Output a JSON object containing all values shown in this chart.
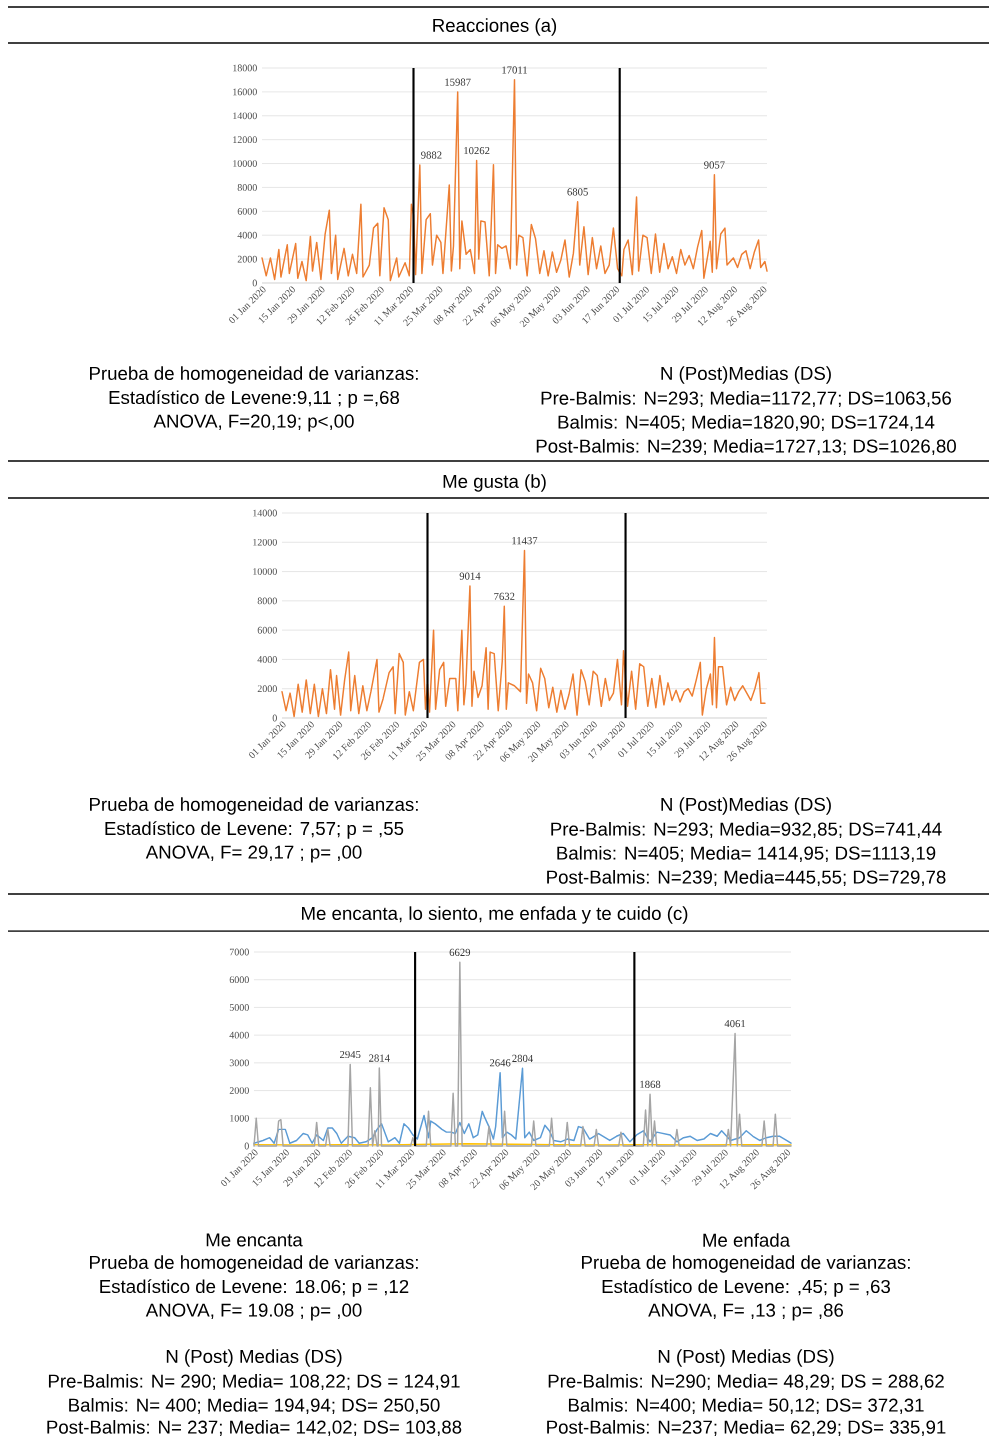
{
  "chart_data": [
    {
      "type": "line",
      "title": "Reacciones (a)",
      "grid": "y",
      "line_style": "solid",
      "xlim": [
        "2020-01-01",
        "2020-08-28"
      ],
      "ylim": [
        0,
        18000
      ],
      "yticks": [
        0,
        2000,
        4000,
        6000,
        8000,
        10000,
        12000,
        14000,
        16000,
        18000
      ],
      "xticks": [
        {
          "value": "2020-01-01",
          "label": "01 Jan 2020"
        },
        {
          "value": "2020-01-15",
          "label": "15 Jan 2020"
        },
        {
          "value": "2020-01-29",
          "label": "29 Jan 2020"
        },
        {
          "value": "2020-02-12",
          "label": "12 Feb 2020"
        },
        {
          "value": "2020-02-26",
          "label": "26 Feb 2020"
        },
        {
          "value": "2020-03-11",
          "label": "11 Mar 2020"
        },
        {
          "value": "2020-03-25",
          "label": "25 Mar 2020"
        },
        {
          "value": "2020-04-08",
          "label": "08 Apr 2020"
        },
        {
          "value": "2020-04-22",
          "label": "22 Apr 2020"
        },
        {
          "value": "2020-05-06",
          "label": "06 May 2020"
        },
        {
          "value": "2020-05-20",
          "label": "20 May 2020"
        },
        {
          "value": "2020-06-03",
          "label": "03 Jun 2020"
        },
        {
          "value": "2020-06-17",
          "label": "17 Jun 2020"
        },
        {
          "value": "2020-07-01",
          "label": "01 Jul 2020"
        },
        {
          "value": "2020-07-15",
          "label": "15 Jul 2020"
        },
        {
          "value": "2020-07-29",
          "label": "29 Jul 2020"
        },
        {
          "value": "2020-08-12",
          "label": "12 Aug 2020"
        },
        {
          "value": "2020-08-26",
          "label": "26 Aug 2020"
        }
      ],
      "ref_lines": [
        {
          "axis": "x",
          "value": "2020-03-13",
          "color": "#000000"
        },
        {
          "axis": "x",
          "value": "2020-06-19",
          "color": "#000000"
        }
      ],
      "series": [
        {
          "color": "#ed7d31",
          "x": [
            "2020-01-01",
            "2020-01-03",
            "2020-01-05",
            "2020-01-07",
            "2020-01-09",
            "2020-01-10",
            "2020-01-13",
            "2020-01-14",
            "2020-01-17",
            "2020-01-18",
            "2020-01-20",
            "2020-01-22",
            "2020-01-24",
            "2020-01-25",
            "2020-01-27",
            "2020-01-29",
            "2020-01-31",
            "2020-02-02",
            "2020-02-03",
            "2020-02-05",
            "2020-02-06",
            "2020-02-09",
            "2020-02-11",
            "2020-02-13",
            "2020-02-15",
            "2020-02-17",
            "2020-02-18",
            "2020-02-21",
            "2020-02-23",
            "2020-02-25",
            "2020-02-26",
            "2020-02-28",
            "2020-03-01",
            "2020-03-02",
            "2020-03-05",
            "2020-03-06",
            "2020-03-09",
            "2020-03-11",
            "2020-03-12",
            "2020-03-13",
            "2020-03-14",
            "2020-03-16",
            "2020-03-17",
            "2020-03-19",
            "2020-03-21",
            "2020-03-22",
            "2020-03-24",
            "2020-03-26",
            "2020-03-27",
            "2020-03-30",
            "2020-03-31",
            "2020-04-01",
            "2020-04-03",
            "2020-04-04",
            "2020-04-05",
            "2020-04-07",
            "2020-04-09",
            "2020-04-11",
            "2020-04-12",
            "2020-04-13",
            "2020-04-14",
            "2020-04-16",
            "2020-04-18",
            "2020-04-19",
            "2020-04-20",
            "2020-04-21",
            "2020-04-22",
            "2020-04-24",
            "2020-04-26",
            "2020-04-28",
            "2020-04-30",
            "2020-05-01",
            "2020-05-02",
            "2020-05-04",
            "2020-05-06",
            "2020-05-08",
            "2020-05-10",
            "2020-05-12",
            "2020-05-14",
            "2020-05-16",
            "2020-05-18",
            "2020-05-20",
            "2020-05-22",
            "2020-05-24",
            "2020-05-26",
            "2020-05-28",
            "2020-05-30",
            "2020-05-31",
            "2020-06-02",
            "2020-06-04",
            "2020-06-06",
            "2020-06-08",
            "2020-06-10",
            "2020-06-12",
            "2020-06-14",
            "2020-06-16",
            "2020-06-18",
            "2020-06-20",
            "2020-06-21",
            "2020-06-23",
            "2020-06-25",
            "2020-06-27",
            "2020-06-28",
            "2020-06-30",
            "2020-07-02",
            "2020-07-04",
            "2020-07-06",
            "2020-07-08",
            "2020-07-10",
            "2020-07-12",
            "2020-07-14",
            "2020-07-16",
            "2020-07-18",
            "2020-07-20",
            "2020-07-22",
            "2020-07-24",
            "2020-07-26",
            "2020-07-28",
            "2020-07-29",
            "2020-08-01",
            "2020-08-02",
            "2020-08-03",
            "2020-08-04",
            "2020-08-06",
            "2020-08-08",
            "2020-08-09",
            "2020-08-12",
            "2020-08-14",
            "2020-08-16",
            "2020-08-18",
            "2020-08-20",
            "2020-08-22",
            "2020-08-24",
            "2020-08-25",
            "2020-08-27",
            "2020-08-28"
          ],
          "values": [
            2100,
            600,
            2100,
            300,
            2800,
            500,
            3200,
            800,
            3300,
            400,
            1800,
            200,
            3900,
            1000,
            3400,
            300,
            4100,
            6100,
            800,
            4000,
            300,
            2900,
            600,
            2400,
            800,
            6600,
            500,
            1500,
            4600,
            5000,
            600,
            6300,
            5300,
            200,
            2100,
            500,
            1700,
            600,
            6600,
            5700,
            700,
            9882,
            800,
            5300,
            5800,
            1500,
            4000,
            3400,
            800,
            8200,
            1000,
            3100,
            15987,
            1200,
            5200,
            2400,
            2800,
            800,
            10262,
            2000,
            5200,
            5100,
            600,
            5200,
            9900,
            800,
            3200,
            2900,
            3100,
            1200,
            17011,
            1500,
            4000,
            3800,
            600,
            4900,
            3700,
            800,
            2700,
            600,
            2600,
            900,
            1900,
            3600,
            500,
            2500,
            6805,
            1500,
            4700,
            700,
            3800,
            1200,
            3100,
            800,
            1500,
            4600,
            1200,
            600,
            2800,
            3600,
            700,
            7200,
            1000,
            4000,
            3800,
            800,
            4100,
            900,
            3300,
            1200,
            2200,
            800,
            2800,
            1500,
            2300,
            1200,
            3000,
            4400,
            400,
            3500,
            900,
            9057,
            1200,
            4100,
            4600,
            1500,
            2100,
            1300,
            2400,
            2700,
            1200,
            2600,
            3600,
            1300,
            1800,
            1000
          ]
        }
      ],
      "annotations": [
        {
          "text": "9882",
          "x": "2020-03-16",
          "y": 9882
        },
        {
          "text": "15987",
          "x": "2020-04-03",
          "y": 15987
        },
        {
          "text": "10262",
          "x": "2020-04-12",
          "y": 10262
        },
        {
          "text": "17011",
          "x": "2020-04-30",
          "y": 17011
        },
        {
          "text": "6805",
          "x": "2020-05-30",
          "y": 6805
        },
        {
          "text": "9057",
          "x": "2020-08-03",
          "y": 9057
        },
        "Prueba de homogeneidad de varianzas:",
        "Estadístico de Levene:9,11 ; p =,68",
        "ANOVA, F=20,19; p<,00",
        "N (Post)Medias (DS)",
        "Pre-Balmis: N=293; Media=1172,77; DS=1063,56",
        "Balmis: N=405; Media=1820,90; DS=1724,14",
        "Post-Balmis: N=239; Media=1727,13; DS=1026,80"
      ]
    },
    {
      "type": "line",
      "title": "Me gusta (b)",
      "grid": "y",
      "line_style": "solid",
      "xlim": [
        "2020-01-01",
        "2020-08-28"
      ],
      "ylim": [
        0,
        14000
      ],
      "yticks": [
        0,
        2000,
        4000,
        6000,
        8000,
        10000,
        12000,
        14000
      ],
      "xticks": [
        {
          "value": "2020-01-01",
          "label": "01 Jan 2020"
        },
        {
          "value": "2020-01-15",
          "label": "15 Jan 2020"
        },
        {
          "value": "2020-01-29",
          "label": "29 Jan 2020"
        },
        {
          "value": "2020-02-12",
          "label": "12 Feb 2020"
        },
        {
          "value": "2020-02-26",
          "label": "26 Feb 2020"
        },
        {
          "value": "2020-03-11",
          "label": "11 Mar 2020"
        },
        {
          "value": "2020-03-25",
          "label": "25 Mar 2020"
        },
        {
          "value": "2020-04-08",
          "label": "08 Apr 2020"
        },
        {
          "value": "2020-04-22",
          "label": "22 Apr 2020"
        },
        {
          "value": "2020-05-06",
          "label": "06 May 2020"
        },
        {
          "value": "2020-05-20",
          "label": "20 May 2020"
        },
        {
          "value": "2020-06-03",
          "label": "03 Jun 2020"
        },
        {
          "value": "2020-06-17",
          "label": "17 Jun 2020"
        },
        {
          "value": "2020-07-01",
          "label": "01 Jul 2020"
        },
        {
          "value": "2020-07-15",
          "label": "15 Jul 2020"
        },
        {
          "value": "2020-07-29",
          "label": "29 Jul 2020"
        },
        {
          "value": "2020-08-12",
          "label": "12 Aug 2020"
        },
        {
          "value": "2020-08-26",
          "label": "26 Aug 2020"
        }
      ],
      "ref_lines": [
        {
          "axis": "x",
          "value": "2020-03-13",
          "color": "#000000"
        },
        {
          "axis": "x",
          "value": "2020-06-19",
          "color": "#000000"
        }
      ],
      "series": [
        {
          "color": "#ed7d31",
          "x": [
            "2020-01-01",
            "2020-01-03",
            "2020-01-05",
            "2020-01-07",
            "2020-01-09",
            "2020-01-11",
            "2020-01-13",
            "2020-01-15",
            "2020-01-17",
            "2020-01-19",
            "2020-01-21",
            "2020-01-23",
            "2020-01-25",
            "2020-01-27",
            "2020-01-28",
            "2020-01-30",
            "2020-02-01",
            "2020-02-03",
            "2020-02-04",
            "2020-02-06",
            "2020-02-08",
            "2020-02-10",
            "2020-02-12",
            "2020-02-14",
            "2020-02-17",
            "2020-02-18",
            "2020-02-20",
            "2020-02-23",
            "2020-02-25",
            "2020-02-26",
            "2020-02-28",
            "2020-03-01",
            "2020-03-02",
            "2020-03-04",
            "2020-03-06",
            "2020-03-09",
            "2020-03-11",
            "2020-03-12",
            "2020-03-13",
            "2020-03-14",
            "2020-03-16",
            "2020-03-17",
            "2020-03-19",
            "2020-03-21",
            "2020-03-22",
            "2020-03-24",
            "2020-03-27",
            "2020-03-28",
            "2020-03-30",
            "2020-03-31",
            "2020-04-01",
            "2020-04-03",
            "2020-04-04",
            "2020-04-05",
            "2020-04-07",
            "2020-04-09",
            "2020-04-11",
            "2020-04-12",
            "2020-04-13",
            "2020-04-15",
            "2020-04-17",
            "2020-04-19",
            "2020-04-20",
            "2020-04-21",
            "2020-04-22",
            "2020-04-25",
            "2020-04-28",
            "2020-04-30",
            "2020-05-01",
            "2020-05-02",
            "2020-05-04",
            "2020-05-06",
            "2020-05-08",
            "2020-05-10",
            "2020-05-12",
            "2020-05-14",
            "2020-05-16",
            "2020-05-18",
            "2020-05-20",
            "2020-05-22",
            "2020-05-24",
            "2020-05-26",
            "2020-05-28",
            "2020-05-30",
            "2020-06-01",
            "2020-06-03",
            "2020-06-05",
            "2020-06-07",
            "2020-06-09",
            "2020-06-11",
            "2020-06-13",
            "2020-06-15",
            "2020-06-17",
            "2020-06-18",
            "2020-06-20",
            "2020-06-22",
            "2020-06-24",
            "2020-06-26",
            "2020-06-28",
            "2020-06-30",
            "2020-07-02",
            "2020-07-04",
            "2020-07-06",
            "2020-07-08",
            "2020-07-10",
            "2020-07-12",
            "2020-07-14",
            "2020-07-16",
            "2020-07-18",
            "2020-07-20",
            "2020-07-22",
            "2020-07-24",
            "2020-07-26",
            "2020-07-27",
            "2020-07-29",
            "2020-07-31",
            "2020-08-01",
            "2020-08-02",
            "2020-08-03",
            "2020-08-04",
            "2020-08-06",
            "2020-08-08",
            "2020-08-10",
            "2020-08-12",
            "2020-08-14",
            "2020-08-16",
            "2020-08-18",
            "2020-08-20",
            "2020-08-22",
            "2020-08-24",
            "2020-08-25",
            "2020-08-27"
          ],
          "values": [
            1800,
            500,
            1700,
            100,
            2300,
            400,
            2600,
            300,
            2300,
            100,
            2000,
            300,
            3300,
            600,
            2900,
            200,
            2600,
            4500,
            500,
            2900,
            300,
            2200,
            500,
            1800,
            4000,
            400,
            1300,
            3100,
            3500,
            300,
            4400,
            3800,
            200,
            1800,
            500,
            3800,
            4000,
            600,
            2300,
            400,
            6000,
            600,
            3300,
            3800,
            800,
            2700,
            2700,
            500,
            6000,
            900,
            2300,
            9014,
            800,
            3200,
            1400,
            2200,
            4800,
            600,
            4500,
            4400,
            500,
            3900,
            7632,
            600,
            2400,
            2200,
            1800,
            11437,
            1000,
            3000,
            2400,
            500,
            3400,
            2700,
            700,
            2100,
            400,
            1900,
            600,
            1600,
            3000,
            200,
            3300,
            2500,
            900,
            3200,
            2900,
            800,
            2700,
            1200,
            1700,
            4000,
            900,
            4600,
            800,
            3200,
            600,
            3700,
            3500,
            800,
            2700,
            700,
            2900,
            900,
            2400,
            1200,
            1900,
            1100,
            1800,
            2000,
            1500,
            2600,
            3800,
            200,
            2000,
            3000,
            900,
            5500,
            700,
            3500,
            3500,
            900,
            2100,
            1200,
            1800,
            2200,
            1700,
            1200,
            2000,
            3100,
            1000,
            1000
          ]
        }
      ],
      "annotations": [
        {
          "text": "9014",
          "x": "2020-04-03",
          "y": 9014
        },
        {
          "text": "7632",
          "x": "2020-04-20",
          "y": 7632
        },
        {
          "text": "11437",
          "x": "2020-04-30",
          "y": 11437
        },
        "Prueba de homogeneidad de varianzas:",
        "Estadístico de Levene: 7,57; p = ,55",
        "ANOVA, F= 29,17 ; p= ,00",
        "N (Post)Medias (DS)",
        "Pre-Balmis: N=293; Media=932,85; DS=741,44",
        "Balmis: N=405; Media= 1414,95; DS=1113,19",
        "Post-Balmis: N=239; Media=445,55; DS=729,78"
      ]
    },
    {
      "type": "line",
      "title": "Me encanta, lo siento, me enfada y te cuido (c)",
      "grid": "y",
      "line_style": "solid",
      "xlim": [
        "2020-01-01",
        "2020-08-28"
      ],
      "ylim": [
        0,
        7000
      ],
      "yticks": [
        0,
        1000,
        2000,
        3000,
        4000,
        5000,
        6000,
        7000
      ],
      "xticks": [
        {
          "value": "2020-01-01",
          "label": "01 Jan 2020"
        },
        {
          "value": "2020-01-15",
          "label": "15 Jan 2020"
        },
        {
          "value": "2020-01-29",
          "label": "29 Jan 2020"
        },
        {
          "value": "2020-02-12",
          "label": "12 Feb 2020"
        },
        {
          "value": "2020-02-26",
          "label": "26 Feb 2020"
        },
        {
          "value": "2020-03-11",
          "label": "11 Mar 2020"
        },
        {
          "value": "2020-03-25",
          "label": "25 Mar 2020"
        },
        {
          "value": "2020-04-08",
          "label": "08 Apr 2020"
        },
        {
          "value": "2020-04-22",
          "label": "22 Apr 2020"
        },
        {
          "value": "2020-05-06",
          "label": "06 May 2020"
        },
        {
          "value": "2020-05-20",
          "label": "20 May 2020"
        },
        {
          "value": "2020-06-03",
          "label": "03 Jun 2020"
        },
        {
          "value": "2020-06-17",
          "label": "17 Jun 2020"
        },
        {
          "value": "2020-07-01",
          "label": "01 Jul 2020"
        },
        {
          "value": "2020-07-15",
          "label": "15 Jul 2020"
        },
        {
          "value": "2020-07-29",
          "label": "29 Jul 2020"
        },
        {
          "value": "2020-08-12",
          "label": "12 Aug 2020"
        },
        {
          "value": "2020-08-26",
          "label": "26 Aug 2020"
        }
      ],
      "ref_lines": [
        {
          "axis": "x",
          "value": "2020-03-13",
          "color": "#000000"
        },
        {
          "axis": "x",
          "value": "2020-06-19",
          "color": "#000000"
        }
      ],
      "series": [
        {
          "color": "#ffc000",
          "x": [
            "2020-01-01",
            "2020-01-20",
            "2020-02-10",
            "2020-03-01",
            "2020-03-20",
            "2020-04-05",
            "2020-04-25",
            "2020-05-15",
            "2020-06-05",
            "2020-06-25",
            "2020-07-15",
            "2020-08-05",
            "2020-08-28"
          ],
          "values": [
            50,
            40,
            50,
            40,
            60,
            80,
            60,
            50,
            40,
            50,
            40,
            50,
            40
          ]
        },
        {
          "color": "#5b9bd5",
          "x": [
            "2020-01-01",
            "2020-01-05",
            "2020-01-08",
            "2020-01-10",
            "2020-01-12",
            "2020-01-15",
            "2020-01-17",
            "2020-01-20",
            "2020-01-23",
            "2020-01-25",
            "2020-01-27",
            "2020-01-29",
            "2020-02-01",
            "2020-02-03",
            "2020-02-05",
            "2020-02-07",
            "2020-02-09",
            "2020-02-12",
            "2020-02-15",
            "2020-02-17",
            "2020-02-20",
            "2020-02-23",
            "2020-02-25",
            "2020-02-27",
            "2020-03-01",
            "2020-03-04",
            "2020-03-06",
            "2020-03-08",
            "2020-03-10",
            "2020-03-12",
            "2020-03-14",
            "2020-03-17",
            "2020-03-19",
            "2020-03-20",
            "2020-03-22",
            "2020-03-25",
            "2020-03-27",
            "2020-03-29",
            "2020-03-31",
            "2020-04-02",
            "2020-04-04",
            "2020-04-06",
            "2020-04-08",
            "2020-04-10",
            "2020-04-12",
            "2020-04-13",
            "2020-04-15",
            "2020-04-17",
            "2020-04-18",
            "2020-04-20",
            "2020-04-21",
            "2020-04-23",
            "2020-04-25",
            "2020-04-27",
            "2020-04-30",
            "2020-05-01",
            "2020-05-03",
            "2020-05-05",
            "2020-05-08",
            "2020-05-10",
            "2020-05-12",
            "2020-05-14",
            "2020-05-17",
            "2020-05-20",
            "2020-05-23",
            "2020-05-25",
            "2020-05-27",
            "2020-05-30",
            "2020-06-03",
            "2020-06-05",
            "2020-06-08",
            "2020-06-11",
            "2020-06-14",
            "2020-06-17",
            "2020-06-20",
            "2020-06-23",
            "2020-06-26",
            "2020-06-29",
            "2020-07-02",
            "2020-07-05",
            "2020-07-08",
            "2020-07-11",
            "2020-07-14",
            "2020-07-17",
            "2020-07-20",
            "2020-07-23",
            "2020-07-26",
            "2020-07-28",
            "2020-08-01",
            "2020-08-05",
            "2020-08-08",
            "2020-08-11",
            "2020-08-14",
            "2020-08-17",
            "2020-08-20",
            "2020-08-23",
            "2020-08-26",
            "2020-08-28"
          ],
          "values": [
            100,
            200,
            300,
            100,
            600,
            600,
            100,
            200,
            450,
            400,
            100,
            400,
            200,
            650,
            650,
            450,
            100,
            350,
            300,
            100,
            150,
            300,
            600,
            800,
            150,
            300,
            100,
            800,
            650,
            400,
            250,
            1100,
            300,
            900,
            800,
            600,
            500,
            500,
            450,
            850,
            450,
            800,
            300,
            400,
            1250,
            1050,
            700,
            250,
            700,
            2646,
            300,
            500,
            400,
            250,
            2804,
            300,
            500,
            200,
            300,
            750,
            550,
            200,
            150,
            250,
            200,
            700,
            650,
            250,
            450,
            350,
            200,
            350,
            450,
            150,
            400,
            550,
            150,
            500,
            450,
            400,
            150,
            300,
            350,
            200,
            250,
            450,
            350,
            550,
            200,
            300,
            550,
            350,
            200,
            300,
            350,
            350,
            200,
            100
          ]
        },
        {
          "color": "#a5a5a5",
          "x": [
            "2020-01-01",
            "2020-01-02",
            "2020-01-03",
            "2020-01-11",
            "2020-01-12",
            "2020-01-13",
            "2020-01-14",
            "2020-01-28",
            "2020-01-29",
            "2020-01-30",
            "2020-02-02",
            "2020-02-03",
            "2020-02-04",
            "2020-02-12",
            "2020-02-13",
            "2020-02-14",
            "2020-02-21",
            "2020-02-22",
            "2020-02-23",
            "2020-02-24",
            "2020-02-25",
            "2020-02-25T12:00",
            "2020-02-26",
            "2020-02-27",
            "2020-03-11",
            "2020-03-12",
            "2020-03-13",
            "2020-03-18",
            "2020-03-19",
            "2020-03-20",
            "2020-03-29",
            "2020-03-30",
            "2020-03-31",
            "2020-04-01",
            "2020-04-02",
            "2020-04-03",
            "2020-04-14",
            "2020-04-15",
            "2020-04-16",
            "2020-04-21",
            "2020-04-22",
            "2020-04-23",
            "2020-05-04",
            "2020-05-05",
            "2020-05-06",
            "2020-05-12",
            "2020-05-13",
            "2020-05-14",
            "2020-05-19",
            "2020-05-20",
            "2020-05-21",
            "2020-05-26",
            "2020-05-27",
            "2020-05-28",
            "2020-06-01",
            "2020-06-02",
            "2020-06-03",
            "2020-06-12",
            "2020-06-13",
            "2020-06-14",
            "2020-06-23",
            "2020-06-24",
            "2020-06-25",
            "2020-06-26",
            "2020-06-27",
            "2020-06-28",
            "2020-06-29",
            "2020-07-07",
            "2020-07-08",
            "2020-07-09",
            "2020-07-30",
            "2020-07-31",
            "2020-08-01",
            "2020-08-03",
            "2020-08-04",
            "2020-08-05",
            "2020-08-06",
            "2020-08-15",
            "2020-08-16",
            "2020-08-17",
            "2020-08-20",
            "2020-08-21",
            "2020-08-22",
            "2020-08-28"
          ],
          "values": [
            0,
            1000,
            0,
            0,
            900,
            950,
            0,
            0,
            850,
            0,
            0,
            600,
            0,
            0,
            2945,
            0,
            0,
            2100,
            0,
            550,
            0,
            0,
            2814,
            0,
            0,
            300,
            0,
            0,
            1250,
            0,
            0,
            1900,
            0,
            0,
            6629,
            0,
            0,
            700,
            0,
            0,
            1250,
            0,
            0,
            900,
            0,
            0,
            1000,
            0,
            0,
            850,
            0,
            0,
            700,
            0,
            0,
            600,
            0,
            0,
            500,
            0,
            0,
            1300,
            0,
            1868,
            0,
            900,
            0,
            0,
            600,
            0,
            0,
            600,
            0,
            4061,
            0,
            1150,
            0,
            0,
            900,
            0,
            0,
            1150,
            0,
            0
          ]
        }
      ],
      "annotations": [
        {
          "text": "2945",
          "x": "2020-02-13",
          "y": 2945
        },
        {
          "text": "2814",
          "x": "2020-02-26",
          "y": 2814
        },
        {
          "text": "6629",
          "x": "2020-04-02",
          "y": 6629
        },
        {
          "text": "2646",
          "x": "2020-04-20",
          "y": 2646
        },
        {
          "text": "2804",
          "x": "2020-04-30",
          "y": 2804
        },
        {
          "text": "1868",
          "x": "2020-06-26",
          "y": 1868
        },
        {
          "text": "4061",
          "x": "2020-08-03",
          "y": 4061
        },
        "Me encanta",
        "Prueba de homogeneidad de varianzas:",
        "Estadístico de Levene: 18.06; p = ,12",
        "ANOVA, F= 19.08 ; p= ,00",
        "N (Post) Medias (DS)",
        "Pre-Balmis: N= 290; Media= 108,22; DS = 124,91",
        "Balmis: N= 400; Media= 194,94; DS= 250,50",
        "Post-Balmis: N= 237; Media= 142,02; DS= 103,88",
        "Me enfada",
        "Prueba de homogeneidad de varianzas:",
        "Estadístico de Levene: ,45; p = ,63",
        "ANOVA, F= ,13 ; p= ,86",
        "N (Post) Medias (DS)",
        "Pre-Balmis: N=290; Media= 48,29; DS = 288,62",
        "Balmis: N=400; Media= 50,12; DS= 372,31",
        "Post-Balmis: N=237; Media= 62,29; DS= 335,91"
      ]
    }
  ]
}
